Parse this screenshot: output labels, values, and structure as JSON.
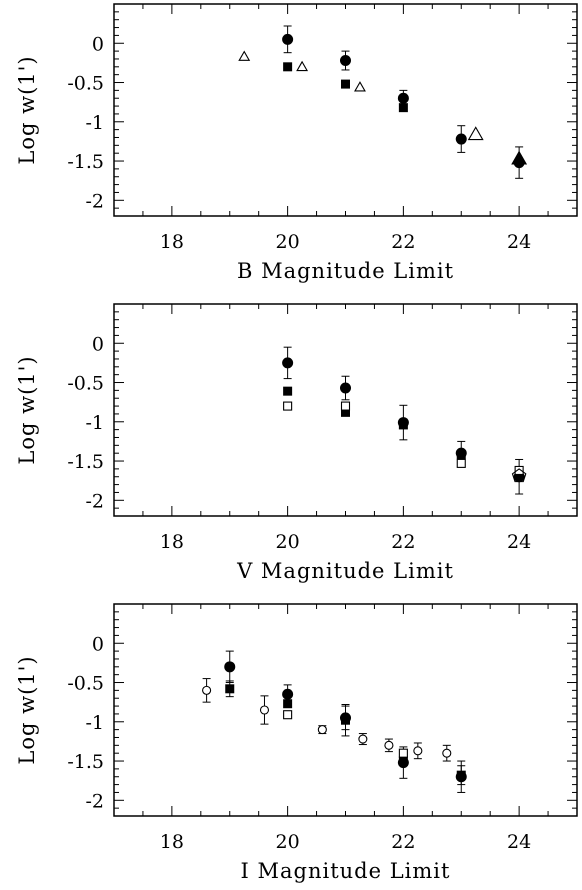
{
  "figure": {
    "panels": [
      {
        "xlabel": "B Magnitude Limit",
        "ylabel": "Log  w(1')"
      },
      {
        "xlabel": "V Magnitude Limit",
        "ylabel": "Log  w(1')"
      },
      {
        "xlabel": "I Magnitude Limit",
        "ylabel": "Log  w(1')"
      }
    ]
  },
  "chart_data": [
    {
      "type": "scatter",
      "title": "",
      "xlabel": "B Magnitude Limit",
      "ylabel": "Log  w(1')",
      "xlim": [
        17,
        25
      ],
      "ylim": [
        -2.2,
        0.5
      ],
      "x_ticks": [
        18,
        20,
        22,
        24
      ],
      "y_ticks": [
        0,
        -0.5,
        -1,
        -1.5,
        -2
      ],
      "x_tick_labels": [
        "18",
        "20",
        "22",
        "24"
      ],
      "y_tick_labels": [
        "0",
        "-0.5",
        "-1",
        "-1.5",
        "-2"
      ],
      "grid": false,
      "series": [
        {
          "marker": "filled-circle",
          "points": [
            {
              "x": 20,
              "y": 0.05,
              "err": 0.17
            },
            {
              "x": 21,
              "y": -0.22,
              "err": 0.12
            },
            {
              "x": 22,
              "y": -0.7,
              "err": 0.1
            },
            {
              "x": 23,
              "y": -1.22,
              "err": 0.17
            },
            {
              "x": 24,
              "y": -1.52,
              "err": 0.2
            }
          ]
        },
        {
          "marker": "filled-square",
          "points": [
            {
              "x": 20,
              "y": -0.3
            },
            {
              "x": 21,
              "y": -0.52
            },
            {
              "x": 22,
              "y": -0.82
            }
          ]
        },
        {
          "marker": "open-triangle",
          "points": [
            {
              "x": 19.25,
              "y": -0.17
            },
            {
              "x": 20.25,
              "y": -0.3
            },
            {
              "x": 21.25,
              "y": -0.56
            }
          ]
        },
        {
          "marker": "open-triangle-large",
          "points": [
            {
              "x": 23.25,
              "y": -1.16
            }
          ]
        },
        {
          "marker": "filled-triangle",
          "points": [
            {
              "x": 24,
              "y": -1.47
            }
          ]
        }
      ]
    },
    {
      "type": "scatter",
      "title": "",
      "xlabel": "V Magnitude Limit",
      "ylabel": "Log  w(1')",
      "xlim": [
        17,
        25
      ],
      "ylim": [
        -2.2,
        0.5
      ],
      "x_ticks": [
        18,
        20,
        22,
        24
      ],
      "y_ticks": [
        0,
        -0.5,
        -1,
        -1.5,
        -2
      ],
      "x_tick_labels": [
        "18",
        "20",
        "22",
        "24"
      ],
      "y_tick_labels": [
        "0",
        "-0.5",
        "-1",
        "-1.5",
        "-2"
      ],
      "grid": false,
      "series": [
        {
          "marker": "filled-circle",
          "points": [
            {
              "x": 20,
              "y": -0.25,
              "err": 0.2
            },
            {
              "x": 21,
              "y": -0.57,
              "err": 0.15
            },
            {
              "x": 22,
              "y": -1.01,
              "err": 0.22
            },
            {
              "x": 23,
              "y": -1.4,
              "err": 0.15
            },
            {
              "x": 24,
              "y": -1.7,
              "err": 0.22
            }
          ]
        },
        {
          "marker": "filled-square",
          "points": [
            {
              "x": 20,
              "y": -0.61
            },
            {
              "x": 21,
              "y": -0.88
            },
            {
              "x": 22,
              "y": -1.04
            },
            {
              "x": 23,
              "y": -1.42
            }
          ]
        },
        {
          "marker": "open-square",
          "points": [
            {
              "x": 20,
              "y": -0.8
            },
            {
              "x": 21,
              "y": -0.8
            },
            {
              "x": 23,
              "y": -1.53
            },
            {
              "x": 24,
              "y": -1.62
            }
          ]
        },
        {
          "marker": "open-pentagon",
          "points": [
            {
              "x": 24,
              "y": -1.69
            }
          ]
        }
      ]
    },
    {
      "type": "scatter",
      "title": "",
      "xlabel": "I Magnitude Limit",
      "ylabel": "Log  w(1')",
      "xlim": [
        17,
        25
      ],
      "ylim": [
        -2.2,
        0.5
      ],
      "x_ticks": [
        18,
        20,
        22,
        24
      ],
      "y_ticks": [
        0,
        -0.5,
        -1,
        -1.5,
        -2
      ],
      "x_tick_labels": [
        "18",
        "20",
        "22",
        "24"
      ],
      "y_tick_labels": [
        "0",
        "-0.5",
        "-1",
        "-1.5",
        "-2"
      ],
      "grid": false,
      "series": [
        {
          "marker": "filled-circle",
          "points": [
            {
              "x": 19,
              "y": -0.3,
              "err": 0.2
            },
            {
              "x": 20,
              "y": -0.65,
              "err": 0.12
            },
            {
              "x": 21,
              "y": -0.95,
              "err": 0.15
            },
            {
              "x": 22,
              "y": -1.52,
              "err": 0.2
            },
            {
              "x": 23,
              "y": -1.7,
              "err": 0.2
            }
          ]
        },
        {
          "marker": "filled-square",
          "points": [
            {
              "x": 19,
              "y": -0.58,
              "err": 0.1
            },
            {
              "x": 20,
              "y": -0.77
            },
            {
              "x": 21,
              "y": -0.98,
              "err": 0.2
            },
            {
              "x": 22,
              "y": -1.5
            },
            {
              "x": 23,
              "y": -1.68,
              "err": 0.12
            }
          ]
        },
        {
          "marker": "open-square",
          "points": [
            {
              "x": 20,
              "y": -0.91
            },
            {
              "x": 22,
              "y": -1.4
            }
          ]
        },
        {
          "marker": "open-circle",
          "points": [
            {
              "x": 18.6,
              "y": -0.6,
              "err": 0.15
            },
            {
              "x": 19.6,
              "y": -0.85,
              "err": 0.18
            },
            {
              "x": 20.6,
              "y": -1.1,
              "err": 0.05
            },
            {
              "x": 21.3,
              "y": -1.22,
              "err": 0.07
            },
            {
              "x": 21.75,
              "y": -1.3,
              "err": 0.08
            },
            {
              "x": 22.25,
              "y": -1.37,
              "err": 0.1
            },
            {
              "x": 22.75,
              "y": -1.4,
              "err": 0.1
            }
          ]
        }
      ]
    }
  ]
}
